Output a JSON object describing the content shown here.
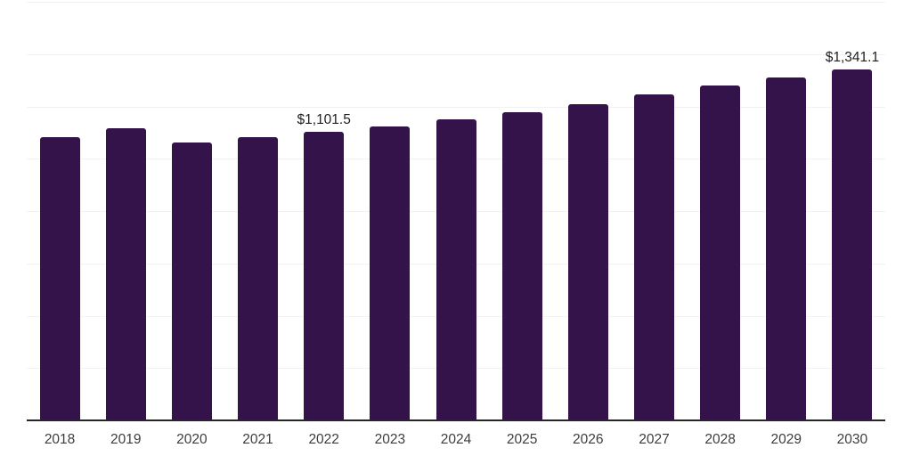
{
  "chart": {
    "background_color": "#ffffff",
    "bar_color": "#331349",
    "gridline_color": "#f2f2f2",
    "axis_color": "#262626",
    "tick_label_color": "#3d3d3d",
    "data_label_color": "#1f1f1f"
  },
  "chart_data": {
    "type": "bar",
    "title": "",
    "xlabel": "",
    "ylabel": "",
    "categories": [
      "2018",
      "2019",
      "2020",
      "2021",
      "2022",
      "2023",
      "2024",
      "2025",
      "2026",
      "2027",
      "2028",
      "2029",
      "2030"
    ],
    "values": [
      1082.0,
      1116.0,
      1063.0,
      1082.0,
      1101.5,
      1122.5,
      1149.0,
      1178.5,
      1210.0,
      1245.0,
      1281.0,
      1311.0,
      1341.1
    ],
    "bar_labels": [
      "",
      "",
      "",
      "",
      "$1,101.5",
      "",
      "",
      "",
      "",
      "",
      "",
      "",
      "$1,341.1"
    ],
    "ylim": [
      0,
      1600
    ],
    "grid_step": 200,
    "grid": true,
    "legend": false,
    "y_axis_ticks_visible": false
  }
}
